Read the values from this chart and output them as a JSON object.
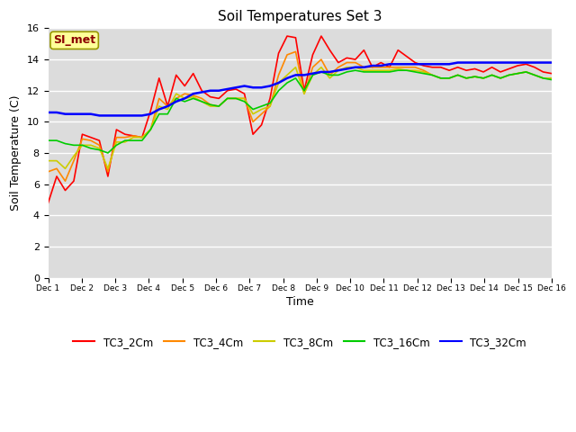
{
  "title": "Soil Temperatures Set 3",
  "xlabel": "Time",
  "ylabel": "Soil Temperature (C)",
  "ylim": [
    0,
    16
  ],
  "yticks": [
    0,
    2,
    4,
    6,
    8,
    10,
    12,
    14,
    16
  ],
  "xlim": [
    0,
    15
  ],
  "xtick_labels": [
    "Dec 1",
    "Dec 2",
    "Dec 3",
    "Dec 4",
    "Dec 5",
    "Dec 6",
    "Dec 7",
    "Dec 8",
    "Dec 9",
    "Dec 10",
    "Dec 11",
    "Dec 12",
    "Dec 13",
    "Dec 14",
    "Dec 15",
    "Dec 16"
  ],
  "bg_color": "#dcdcdc",
  "fig_color": "#ffffff",
  "annotation_text": "SI_met",
  "annotation_color": "#8b0000",
  "annotation_bg": "#ffff99",
  "annotation_border": "#999900",
  "colors": {
    "TC3_2Cm": "#ff0000",
    "TC3_4Cm": "#ff8800",
    "TC3_8Cm": "#cccc00",
    "TC3_16Cm": "#00cc00",
    "TC3_32Cm": "#0000ff"
  },
  "TC3_2Cm": [
    4.8,
    6.5,
    5.6,
    6.2,
    9.2,
    9.0,
    8.8,
    6.5,
    9.5,
    9.2,
    9.1,
    9.0,
    10.7,
    12.8,
    11.0,
    13.0,
    12.3,
    13.1,
    12.0,
    11.6,
    11.5,
    12.0,
    12.1,
    11.8,
    9.2,
    9.8,
    11.5,
    14.4,
    15.5,
    15.4,
    12.0,
    14.3,
    15.5,
    14.6,
    13.8,
    14.1,
    14.0,
    14.6,
    13.5,
    13.8,
    13.5,
    14.6,
    14.2,
    13.8,
    13.6,
    13.5,
    13.5,
    13.3,
    13.5,
    13.3,
    13.4,
    13.2,
    13.5,
    13.2,
    13.4,
    13.6,
    13.7,
    13.5,
    13.2,
    13.1
  ],
  "TC3_4Cm": [
    6.8,
    7.0,
    6.2,
    7.5,
    8.9,
    8.8,
    8.5,
    6.8,
    9.0,
    9.0,
    9.1,
    9.0,
    9.5,
    11.5,
    11.0,
    11.5,
    11.8,
    11.7,
    11.5,
    11.1,
    11.0,
    11.5,
    11.5,
    11.5,
    10.0,
    10.5,
    11.0,
    13.0,
    14.3,
    14.5,
    11.8,
    13.5,
    14.0,
    13.0,
    13.5,
    13.8,
    13.8,
    13.5,
    13.5,
    13.5,
    13.5,
    13.5,
    13.5,
    13.5,
    13.3,
    13.0,
    12.8,
    12.8,
    13.0,
    12.8,
    12.9,
    12.8,
    13.0,
    12.8,
    13.0,
    13.1,
    13.2,
    13.0,
    12.8,
    12.8
  ],
  "TC3_8Cm": [
    7.5,
    7.5,
    7.0,
    7.8,
    8.5,
    8.5,
    8.3,
    7.0,
    8.7,
    8.7,
    9.0,
    9.0,
    9.5,
    11.0,
    10.8,
    11.8,
    11.5,
    11.6,
    11.3,
    11.0,
    11.0,
    11.5,
    11.5,
    11.5,
    10.5,
    10.8,
    11.0,
    12.5,
    13.0,
    13.5,
    11.8,
    13.0,
    13.5,
    12.8,
    13.3,
    13.5,
    13.5,
    13.3,
    13.3,
    13.3,
    13.3,
    13.4,
    13.3,
    13.3,
    13.2,
    13.0,
    12.8,
    12.8,
    13.0,
    12.8,
    12.9,
    12.8,
    13.0,
    12.8,
    13.0,
    13.1,
    13.2,
    13.0,
    12.8,
    12.8
  ],
  "TC3_16Cm": [
    8.8,
    8.8,
    8.6,
    8.5,
    8.5,
    8.3,
    8.2,
    8.0,
    8.5,
    8.8,
    8.8,
    8.8,
    9.5,
    10.5,
    10.5,
    11.5,
    11.3,
    11.5,
    11.3,
    11.1,
    11.0,
    11.5,
    11.5,
    11.3,
    10.8,
    11.0,
    11.2,
    12.0,
    12.5,
    12.8,
    12.0,
    13.0,
    13.2,
    13.0,
    13.0,
    13.2,
    13.3,
    13.2,
    13.2,
    13.2,
    13.2,
    13.3,
    13.3,
    13.2,
    13.1,
    13.0,
    12.8,
    12.8,
    13.0,
    12.8,
    12.9,
    12.8,
    13.0,
    12.8,
    13.0,
    13.1,
    13.2,
    13.0,
    12.8,
    12.7
  ],
  "TC3_32Cm": [
    10.6,
    10.6,
    10.5,
    10.5,
    10.5,
    10.5,
    10.4,
    10.4,
    10.4,
    10.4,
    10.4,
    10.4,
    10.5,
    10.8,
    11.0,
    11.3,
    11.5,
    11.8,
    11.9,
    12.0,
    12.0,
    12.1,
    12.2,
    12.3,
    12.2,
    12.2,
    12.3,
    12.5,
    12.8,
    13.0,
    13.0,
    13.1,
    13.2,
    13.2,
    13.3,
    13.4,
    13.5,
    13.5,
    13.6,
    13.6,
    13.7,
    13.7,
    13.7,
    13.7,
    13.7,
    13.7,
    13.7,
    13.7,
    13.8,
    13.8,
    13.8,
    13.8,
    13.8,
    13.8,
    13.8,
    13.8,
    13.8,
    13.8,
    13.8,
    13.8
  ]
}
